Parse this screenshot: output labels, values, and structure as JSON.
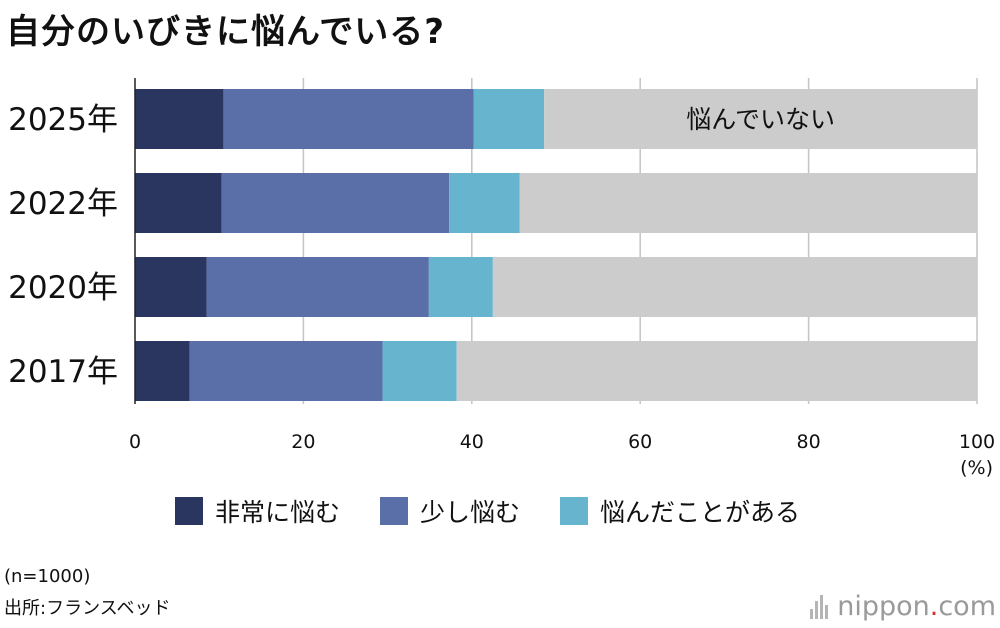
{
  "title": "自分のいびきに悩んでいる?",
  "chart_data": {
    "type": "bar",
    "orientation": "horizontal",
    "stacked": true,
    "categories": [
      "2025年",
      "2022年",
      "2020年",
      "2017年"
    ],
    "series": [
      {
        "name": "非常に悩む",
        "color": "#2a3560",
        "values": [
          10.5,
          10.3,
          8.5,
          6.5
        ]
      },
      {
        "name": "少し悩む",
        "color": "#5a6ea8",
        "values": [
          29.7,
          27.0,
          26.4,
          22.9
        ]
      },
      {
        "name": "悩んだことがある",
        "color": "#67b4cf",
        "values": [
          8.4,
          8.4,
          7.6,
          8.8
        ]
      },
      {
        "name": "悩んでいない",
        "color": "#cccccc",
        "values": [
          51.4,
          54.3,
          57.5,
          61.8
        ]
      }
    ],
    "xlim": [
      0,
      100
    ],
    "xticks": [
      "0",
      "20",
      "40",
      "60",
      "80",
      "100"
    ],
    "unit": "(%)",
    "grid": true,
    "inline_label": "悩んでいない",
    "legend": [
      "非常に悩む",
      "少し悩む",
      "悩んだことがある"
    ],
    "legend_position": "bottom"
  },
  "footnote": {
    "sample": "(n=1000)",
    "source": "出所:フランスベッド"
  },
  "logo": {
    "name": "nippon",
    "dot": ".",
    "tld": "com"
  }
}
